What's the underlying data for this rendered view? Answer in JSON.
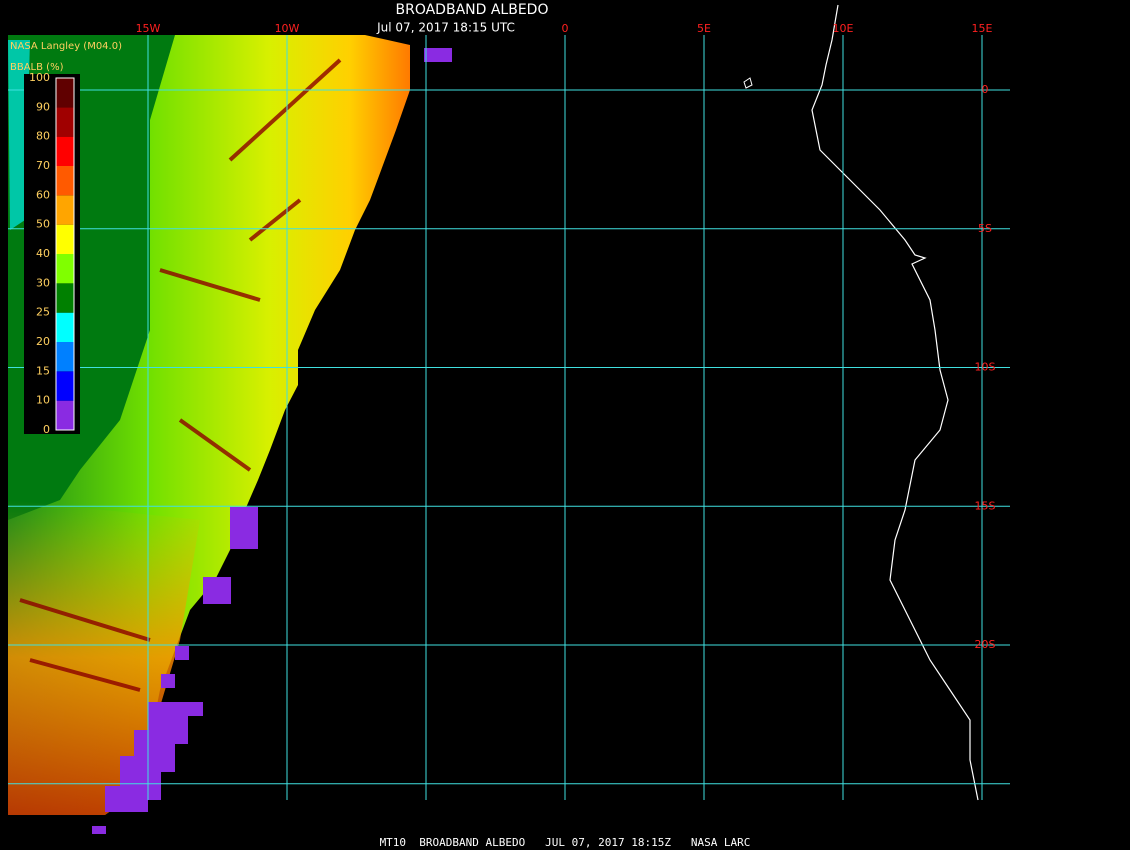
{
  "header": {
    "title": "BROADBAND ALBEDO",
    "subtitle": "Jul 07, 2017 18:15 UTC",
    "source": "NASA Langley (M04.0)"
  },
  "footer": "MT10  BROADBAND ALBEDO   JUL 07, 2017 18:15Z   NASA LARC",
  "map": {
    "lon_grid": [
      -15,
      -10,
      -5,
      0,
      5,
      10,
      15
    ],
    "lat_grid": [
      0,
      -5,
      -10,
      -15,
      -20,
      -25
    ],
    "lon_labels": [
      {
        "value": -15,
        "label": "15W"
      },
      {
        "value": -10,
        "label": "10W"
      },
      0,
      {
        "value": 5,
        "label": "5E"
      },
      {
        "value": 10,
        "label": "10E"
      },
      {
        "value": 15,
        "label": "15E"
      }
    ],
    "lat_labels": [
      0,
      {
        "value": -5,
        "label": "5S"
      },
      {
        "value": -10,
        "label": "10S"
      },
      {
        "value": -15,
        "label": "15S"
      },
      {
        "value": -20,
        "label": "20S"
      }
    ],
    "grid_color": "#40e0e0",
    "label_color": "#ff2020"
  },
  "colorbar": {
    "title": "BBALB (%)",
    "ticks": [
      0,
      10,
      15,
      20,
      25,
      30,
      40,
      50,
      60,
      70,
      80,
      90,
      100
    ],
    "colors": [
      "#8a2be2",
      "#0000ff",
      "#0080ff",
      "#00ffff",
      "#008000",
      "#80ff00",
      "#ffff00",
      "#ffa500",
      "#ff5a00",
      "#ff0000",
      "#a00000",
      "#600000"
    ]
  }
}
